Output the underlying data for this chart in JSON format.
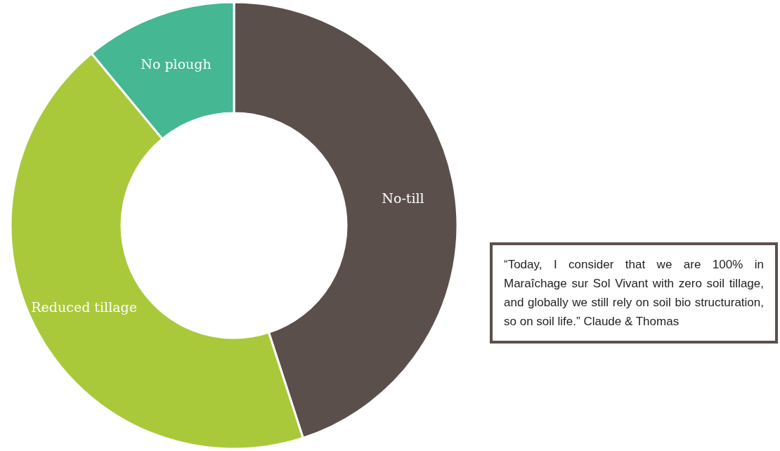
{
  "chart_data": {
    "type": "donut",
    "categories": [
      "No-till",
      "Reduced tillage",
      "No plough"
    ],
    "values": [
      45,
      44,
      11
    ],
    "colors": [
      "#5b4f4c",
      "#aac93a",
      "#45b792"
    ],
    "annotations": [
      "“Today, I consider that we are 100% in Maraîchage sur Sol Vivant with zero soil tillage, and globally we still rely on soil bio structuration, so on soil life.” Claude & Thomas"
    ]
  }
}
